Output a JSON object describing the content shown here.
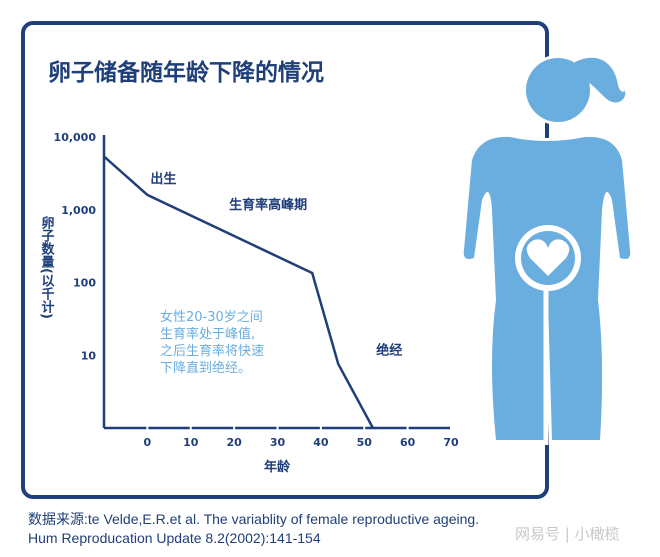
{
  "chart_data": {
    "type": "line",
    "title": "卵子储备随年龄下降的情况",
    "xlabel": "年龄",
    "ylabel": "卵子数量(以千计)",
    "x_ticks": [
      "0",
      "10",
      "20",
      "30",
      "40",
      "50",
      "60",
      "70"
    ],
    "y_ticks": [
      "10,000",
      "1,000",
      "100",
      "10"
    ],
    "y_tick_values": [
      10000,
      1000,
      100,
      10
    ],
    "x_tick_values": [
      0,
      10,
      20,
      30,
      40,
      50,
      60,
      70
    ],
    "xlim": [
      -10,
      70
    ],
    "ylim": [
      1,
      10000
    ],
    "y_scale": "log",
    "grid": false,
    "series": [
      {
        "x": [
          -10,
          0,
          38,
          44,
          52
        ],
        "y": [
          5400,
          1600,
          135,
          7.6,
          1
        ]
      }
    ],
    "annotations": [
      {
        "text": "出生",
        "x": 0,
        "y": 1600
      },
      {
        "text": "生育率高峰期",
        "x": 20,
        "y": 700
      },
      {
        "text": "绝经",
        "x": 50,
        "y": 8
      }
    ],
    "note_lines": [
      "女性20-30岁之间",
      "生育率处于峰值,",
      "之后生育率将快速",
      "下降直到绝经。"
    ],
    "colors": {
      "line": "#1f3f7a",
      "frame": "#1f3f7a",
      "note": "#6aaee0",
      "figure": "#6aaee0"
    }
  },
  "source": {
    "line1": "数据来源:te Velde,E.R.et al. The variablity of female reproductive ageing.",
    "line2": "Hum Reproducation Update 8.2(2002):141-154"
  },
  "watermark": "网易号 | 小橄榄",
  "figure_icon": "woman-heart-icon"
}
